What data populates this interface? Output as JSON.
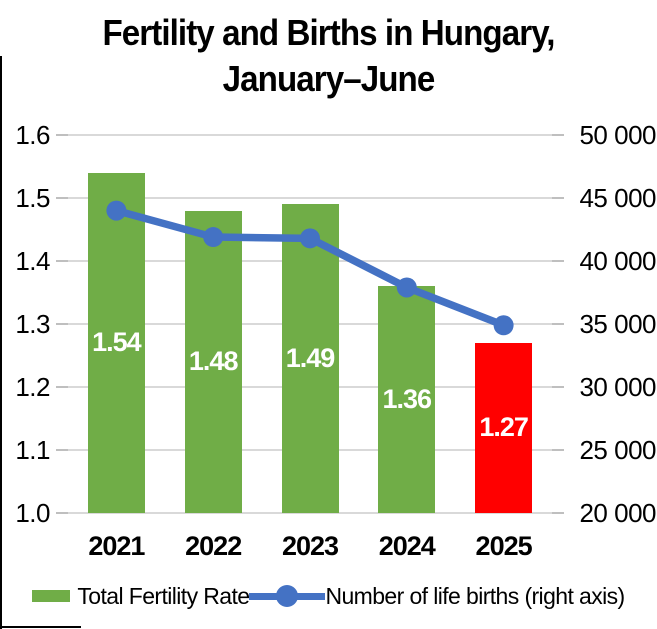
{
  "title": {
    "line1": "Fertility and Births in Hungary,",
    "line2": "January–June"
  },
  "chart_data": {
    "type": "combo-bar-line",
    "title": "Fertility and Births in Hungary, January–June",
    "categories": [
      "2021",
      "2022",
      "2023",
      "2024",
      "2025"
    ],
    "series": [
      {
        "name": "Total Fertility Rate",
        "type": "bar",
        "axis": "left",
        "values": [
          1.54,
          1.48,
          1.49,
          1.36,
          1.27
        ],
        "data_labels": [
          "1.54",
          "1.48",
          "1.49",
          "1.36",
          "1.27"
        ],
        "bar_colors": [
          "#70AD47",
          "#70AD47",
          "#70AD47",
          "#70AD47",
          "#FF0000"
        ]
      },
      {
        "name": "Number of life births (right axis)",
        "type": "line",
        "axis": "right",
        "values": [
          44000,
          41900,
          41800,
          37900,
          34900
        ],
        "color": "#4472C4"
      }
    ],
    "left_axis": {
      "min": 1.0,
      "max": 1.6,
      "ticks": [
        "1.6",
        "1.5",
        "1.4",
        "1.3",
        "1.2",
        "1.1",
        "1.0"
      ]
    },
    "right_axis": {
      "min": 20000,
      "max": 50000,
      "ticks": [
        "50 000",
        "45 000",
        "40 000",
        "35 000",
        "30 000",
        "25 000",
        "20 000"
      ]
    },
    "gridlines": true,
    "legend_position": "bottom",
    "colors": {
      "bar_green": "#70AD47",
      "bar_red": "#FF0000",
      "line_blue": "#4472C4",
      "gridline": "#D9D9D9",
      "data_label_text": "#FFFFFF"
    }
  },
  "legend": {
    "items": [
      {
        "label": "Total Fertility Rate",
        "swatch": "bar"
      },
      {
        "label": "Number of life births (right axis)",
        "swatch": "line-marker"
      }
    ]
  }
}
